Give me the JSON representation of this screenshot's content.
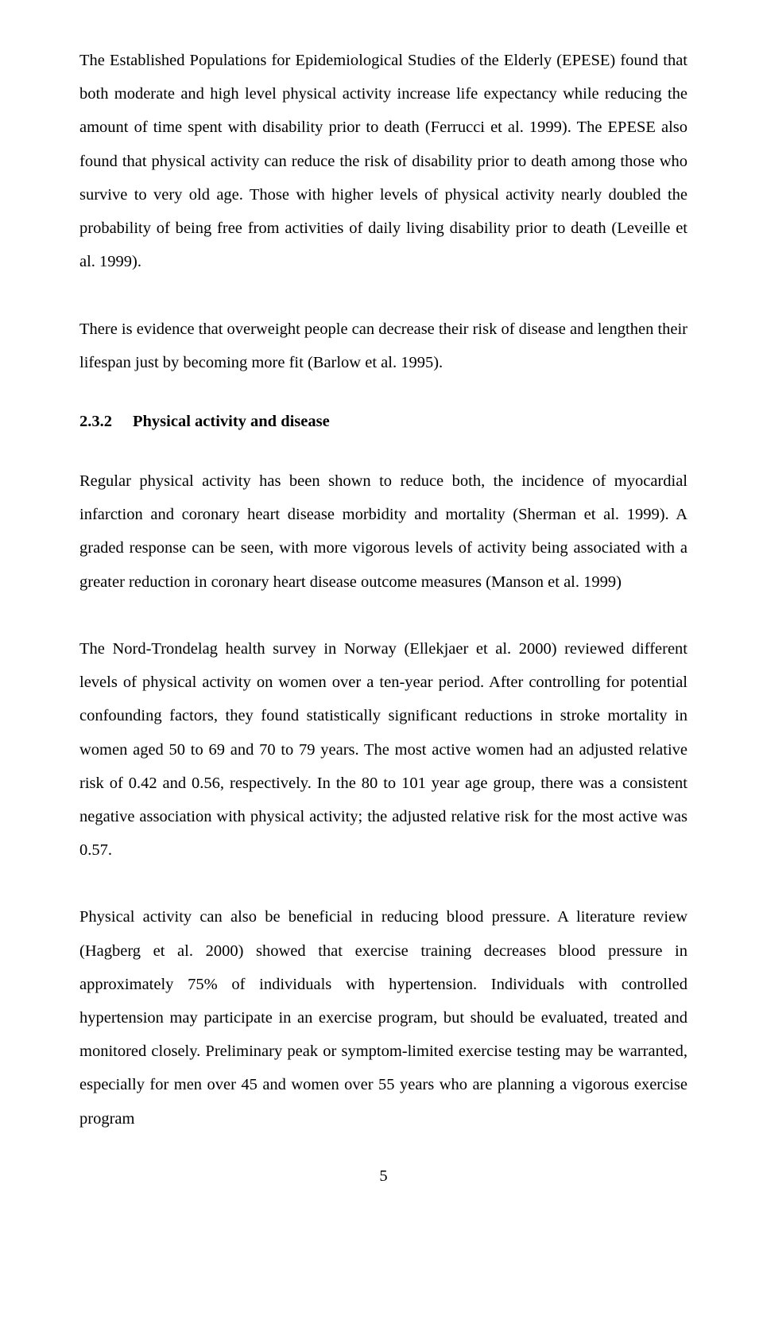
{
  "page": {
    "number": "5",
    "background": "#ffffff",
    "text_color": "#000000",
    "font_family": "Times New Roman",
    "body_font_size_pt": 15,
    "line_height": 2.06
  },
  "paragraphs": {
    "p1": "The Established Populations for Epidemiological Studies of the Elderly (EPESE) found that both moderate and high level physical activity increase life expectancy while reducing the amount of time spent with disability prior to death (Ferrucci et al. 1999). The EPESE also found that physical activity can reduce the risk of disability prior to death among those who survive to very old age. Those with higher levels of physical activity nearly doubled the probability of being free from activities of daily living disability prior to death (Leveille et al. 1999).",
    "p2": "There is evidence that overweight people can decrease their risk of disease and lengthen their lifespan just by becoming more fit (Barlow et al. 1995).",
    "p3": "Regular physical activity has been shown to reduce both, the incidence of myocardial infarction and coronary heart disease morbidity and mortality (Sherman et al. 1999). A graded response can be seen, with more vigorous levels of activity being associated with a greater reduction in coronary heart disease outcome measures (Manson et al. 1999)",
    "p4": "The Nord-Trondelag health survey in Norway (Ellekjaer et al. 2000) reviewed different levels of physical activity on women over a ten-year period. After controlling for potential confounding factors, they found statistically significant reductions in stroke mortality in women aged 50 to 69 and 70 to 79 years. The most active women had an adjusted relative risk of 0.42 and 0.56, respectively. In the 80 to 101 year age group, there was a consistent negative association with physical activity; the adjusted relative risk for the most active was 0.57.",
    "p5": "Physical activity can also be beneficial in reducing blood pressure. A literature review (Hagberg et al. 2000) showed that exercise training decreases blood pressure in approximately 75% of individuals with hypertension. Individuals with controlled hypertension may participate in an exercise program, but should be evaluated, treated and monitored closely. Preliminary peak or symptom-limited exercise testing may be warranted, especially for men over 45 and women over 55 years who are planning a vigorous exercise program"
  },
  "heading": {
    "number": "2.3.2",
    "title": "Physical activity and disease"
  }
}
